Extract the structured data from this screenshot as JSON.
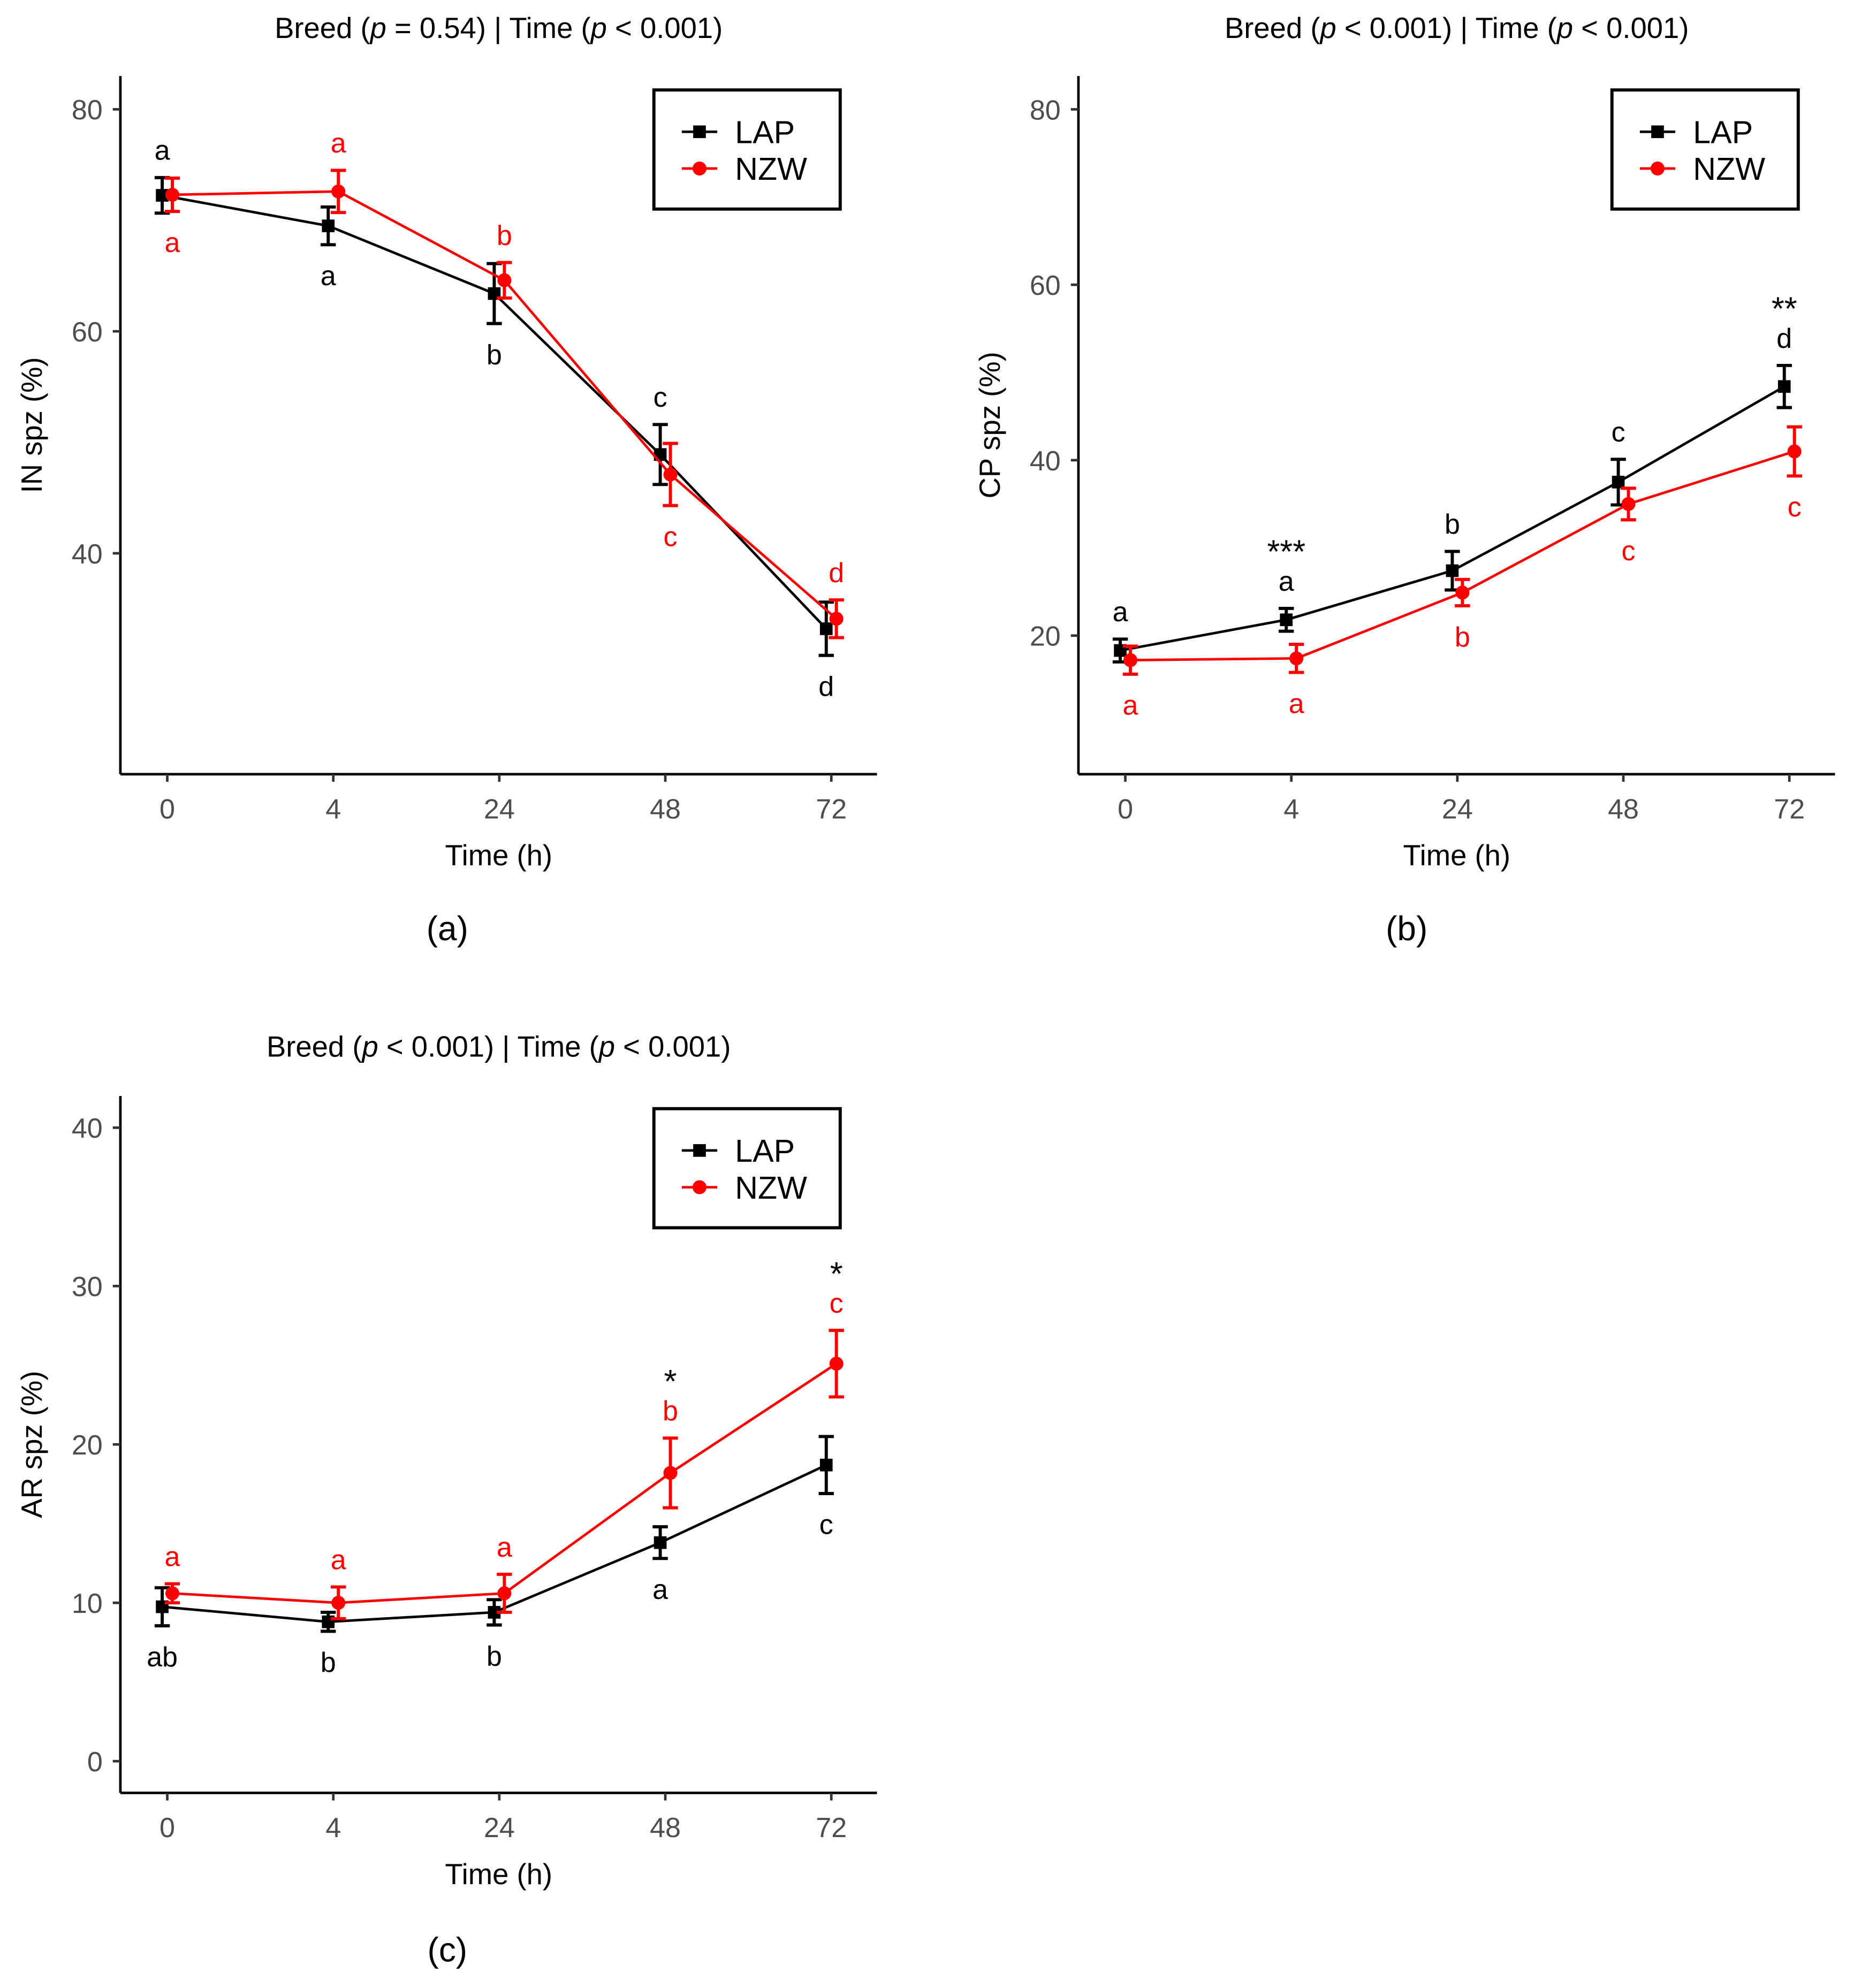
{
  "colors": {
    "LAP": "#000000",
    "NZW": "#ff0000"
  },
  "chart_data": [
    {
      "panel_label": "(a)",
      "type": "line",
      "title": "Breed (p = 0.54) | Time (p < 0.001)",
      "xlabel": "Time (h)",
      "ylabel": "IN spz (%)",
      "categories": [
        "0",
        "4",
        "24",
        "48",
        "72"
      ],
      "ylim": [
        20.1,
        83
      ],
      "yticks": [
        40,
        60,
        80
      ],
      "legend": {
        "position": "top-right",
        "entries": [
          "LAP",
          "NZW"
        ]
      },
      "series": [
        {
          "name": "LAP",
          "marker": "square",
          "values": [
            72.25,
            69.5,
            63.4,
            48.9,
            33.2
          ],
          "errors": [
            1.6,
            1.7,
            2.7,
            2.7,
            2.4
          ],
          "letters": [
            "a",
            "a",
            "b",
            "c",
            "d"
          ],
          "letter_pos": [
            "above",
            "below",
            "below",
            "above",
            "below"
          ],
          "stars": [
            "",
            "",
            "",
            "",
            ""
          ]
        },
        {
          "name": "NZW",
          "marker": "circle",
          "values": [
            72.3,
            72.6,
            64.6,
            47.1,
            34.1
          ],
          "errors": [
            1.5,
            1.9,
            1.6,
            2.8,
            1.7
          ],
          "letters": [
            "a",
            "a",
            "b",
            "c",
            "d"
          ],
          "letter_pos": [
            "below",
            "above",
            "above",
            "below",
            "above"
          ],
          "stars": [
            "",
            "",
            "",
            "",
            ""
          ]
        }
      ]
    },
    {
      "panel_label": "(b)",
      "type": "line",
      "title": "Breed (p < 0.001) | Time (p < 0.001)",
      "xlabel": "Time (h)",
      "ylabel": "CP spz (%)",
      "categories": [
        "0",
        "4",
        "24",
        "48",
        "72"
      ],
      "ylim": [
        4.2,
        83.8
      ],
      "yticks": [
        20,
        40,
        60,
        80
      ],
      "legend": {
        "position": "top-right",
        "entries": [
          "LAP",
          "NZW"
        ]
      },
      "series": [
        {
          "name": "LAP",
          "marker": "square",
          "values": [
            18.3,
            21.8,
            27.4,
            37.5,
            48.4
          ],
          "errors": [
            1.3,
            1.3,
            2.2,
            2.6,
            2.4
          ],
          "letters": [
            "a",
            "a",
            "b",
            "c",
            "d"
          ],
          "letter_pos": [
            "above",
            "above",
            "above",
            "above",
            "above"
          ],
          "stars": [
            "",
            "***",
            "",
            "",
            "**"
          ]
        },
        {
          "name": "NZW",
          "marker": "circle",
          "values": [
            17.2,
            17.4,
            24.9,
            35.0,
            41.0
          ],
          "errors": [
            1.6,
            1.6,
            1.5,
            1.8,
            2.8
          ],
          "letters": [
            "a",
            "a",
            "b",
            "c",
            "c"
          ],
          "letter_pos": [
            "below",
            "below",
            "below",
            "below",
            "below"
          ],
          "stars": [
            "",
            "",
            "",
            "",
            ""
          ]
        }
      ]
    },
    {
      "panel_label": "(c)",
      "type": "line",
      "title": "Breed (p < 0.001) | Time (p < 0.001)",
      "xlabel": "Time (h)",
      "ylabel": "AR spz (%)",
      "categories": [
        "0",
        "4",
        "24",
        "48",
        "72"
      ],
      "ylim": [
        -2,
        42
      ],
      "yticks": [
        0,
        10,
        20,
        30,
        40
      ],
      "legend": {
        "position": "top-right",
        "entries": [
          "LAP",
          "NZW"
        ]
      },
      "series": [
        {
          "name": "LAP",
          "marker": "square",
          "values": [
            9.75,
            8.8,
            9.4,
            13.8,
            18.7
          ],
          "errors": [
            1.2,
            0.6,
            0.8,
            1.0,
            1.8
          ],
          "letters": [
            "ab",
            "b",
            "b",
            "a",
            "c"
          ],
          "letter_pos": [
            "below",
            "below",
            "below",
            "below",
            "below"
          ],
          "stars": [
            "",
            "",
            "",
            "",
            ""
          ]
        },
        {
          "name": "NZW",
          "marker": "circle",
          "values": [
            10.6,
            10.0,
            10.6,
            18.2,
            25.1
          ],
          "errors": [
            0.6,
            1.0,
            1.2,
            2.2,
            2.1
          ],
          "letters": [
            "a",
            "a",
            "a",
            "b",
            "c"
          ],
          "letter_pos": [
            "above",
            "above",
            "above",
            "above",
            "above"
          ],
          "stars": [
            "",
            "",
            "",
            "*",
            "*"
          ]
        }
      ]
    }
  ]
}
